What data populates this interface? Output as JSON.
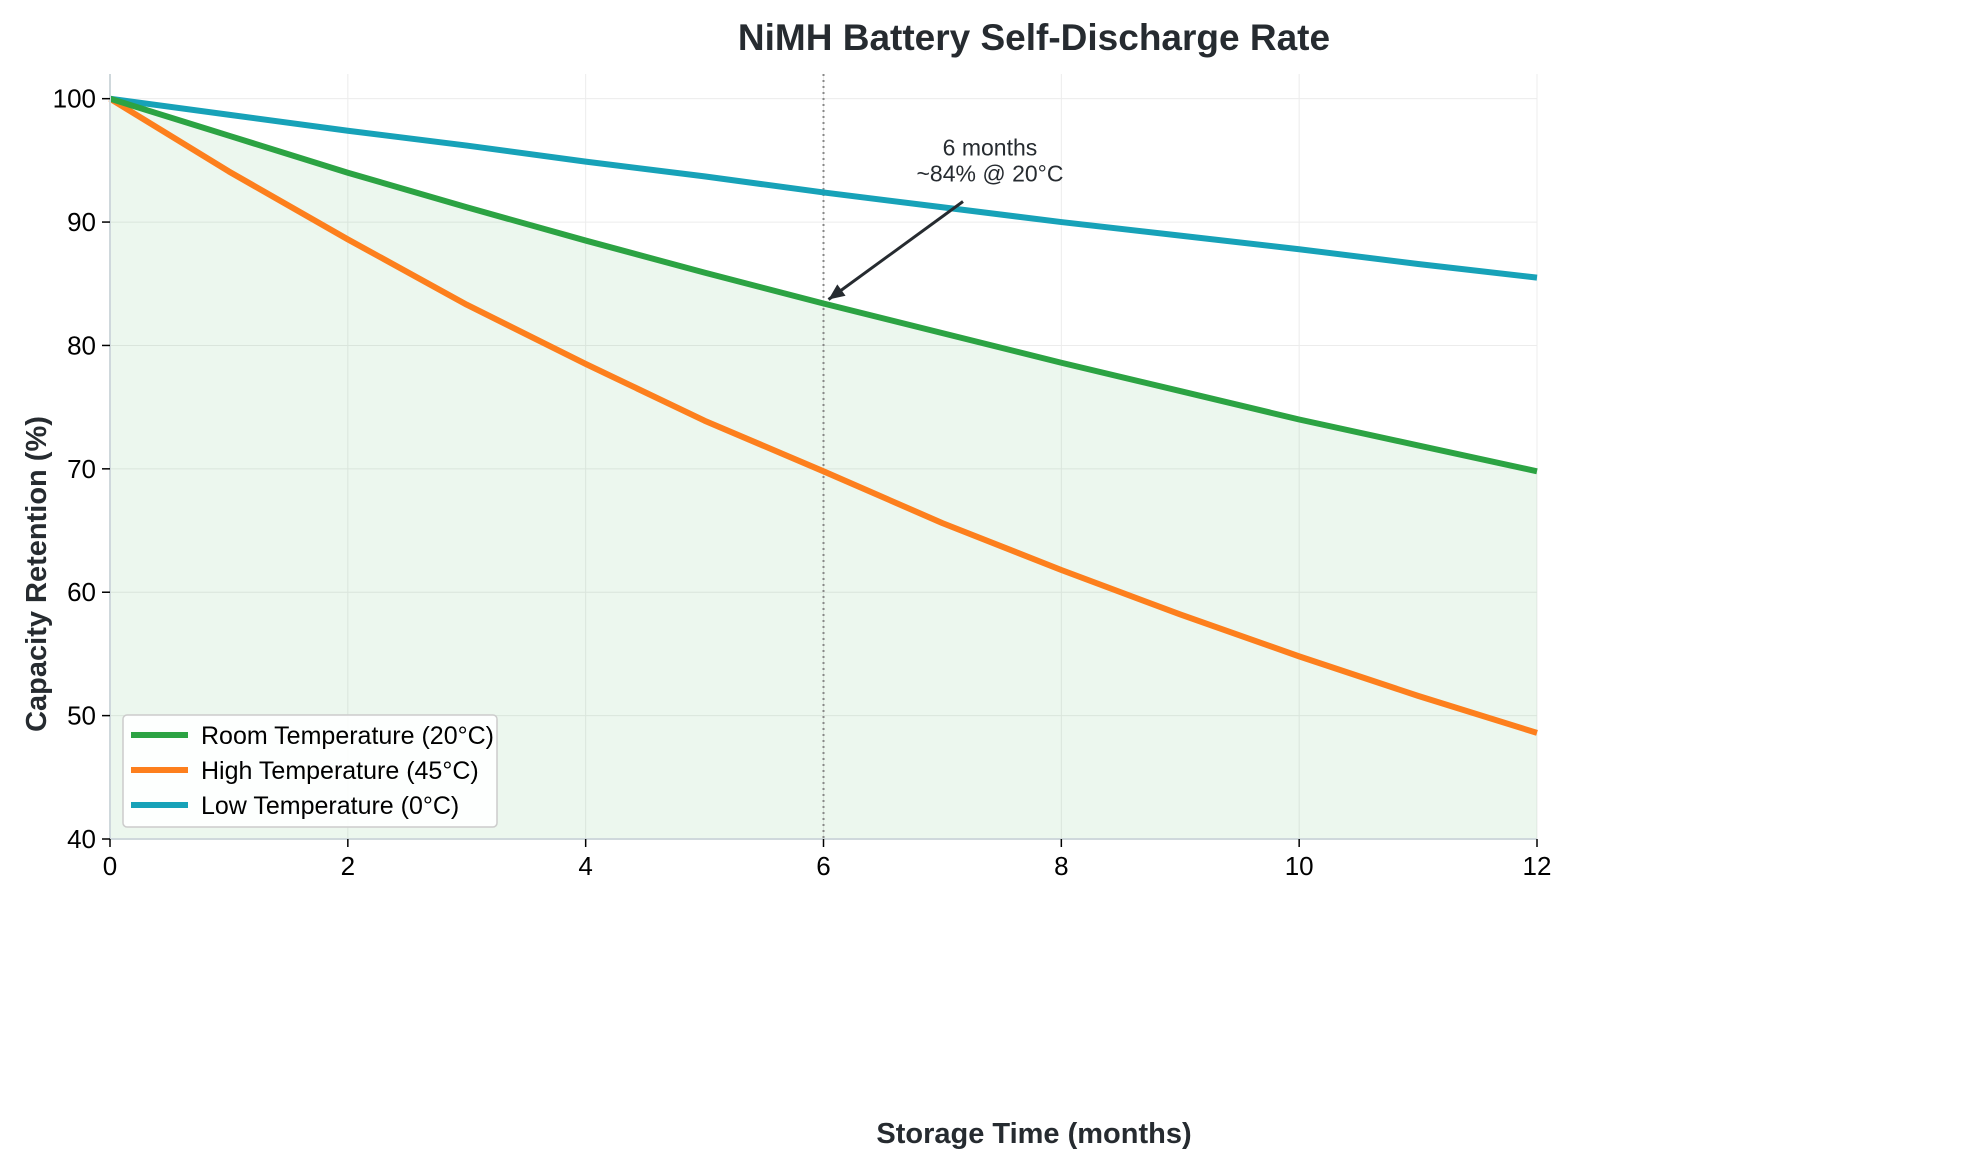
{
  "chart_data": {
    "type": "line",
    "title": "NiMH Battery Self-Discharge Rate",
    "xlabel": "Storage Time (months)",
    "ylabel": "Capacity Retention (%)",
    "xlim": [
      0,
      12
    ],
    "ylim": [
      40,
      102
    ],
    "x_ticks": [
      "0",
      "2",
      "4",
      "6",
      "8",
      "10",
      "12"
    ],
    "y_ticks": [
      "40",
      "50",
      "60",
      "70",
      "80",
      "90",
      "100"
    ],
    "grid": true,
    "legend_position": "lower-left",
    "x": [
      0,
      1,
      2,
      3,
      4,
      5,
      6,
      7,
      8,
      9,
      10,
      11,
      12
    ],
    "series": [
      {
        "name": "Room Temperature (20°C)",
        "color": "#2ca343",
        "values": [
          100,
          97.0,
          94.0,
          91.2,
          88.5,
          85.9,
          83.4,
          81.0,
          78.6,
          76.3,
          74.0,
          71.9,
          69.8
        ],
        "fill_to": 40,
        "fill_color": "#2ca343"
      },
      {
        "name": "High Temperature (45°C)",
        "color": "#fd7f1d",
        "values": [
          100,
          94.1,
          88.6,
          83.3,
          78.5,
          73.9,
          69.8,
          65.6,
          61.8,
          58.2,
          54.8,
          51.6,
          48.6
        ]
      },
      {
        "name": "Low Temperature (0°C)",
        "color": "#17a2b8",
        "values": [
          100,
          98.7,
          97.4,
          96.2,
          94.9,
          93.7,
          92.4,
          91.2,
          90.0,
          88.9,
          87.8,
          86.6,
          85.5
        ]
      }
    ],
    "vline": {
      "x": 6,
      "color": "#888888",
      "style": "dotted"
    },
    "annotation": {
      "lines": [
        "6 months",
        "~84% @ 20°C"
      ],
      "point": [
        6,
        83.4
      ],
      "text_at": [
        7.4,
        92.8
      ]
    }
  }
}
